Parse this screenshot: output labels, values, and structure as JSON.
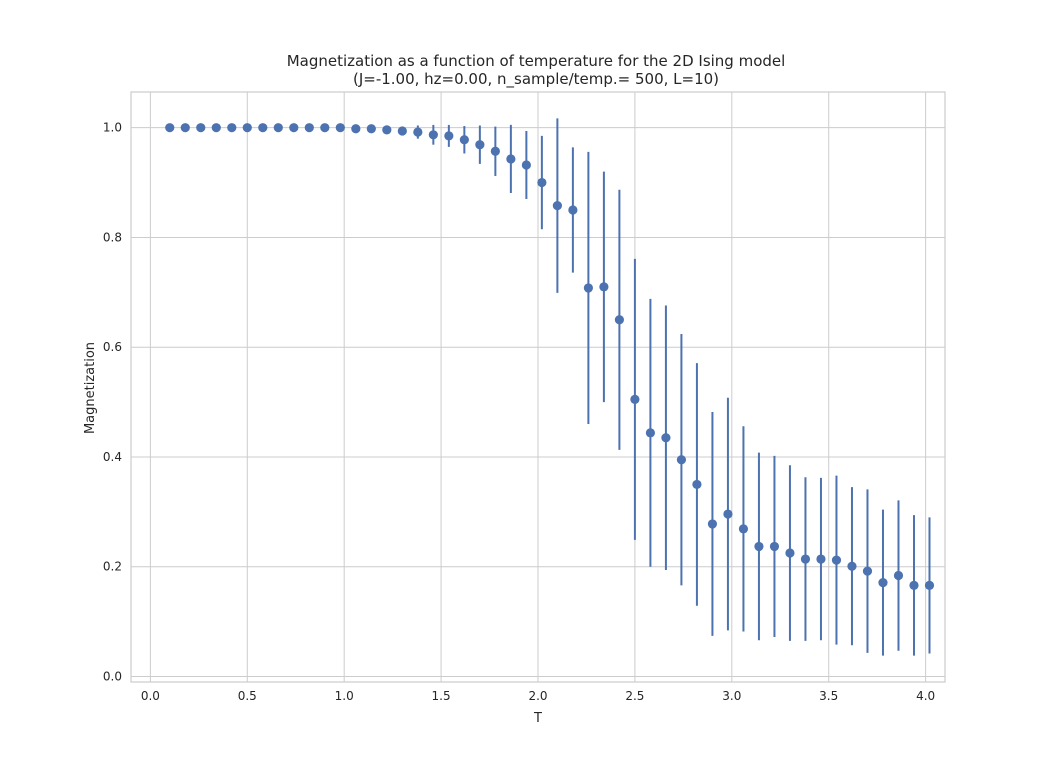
{
  "colors": {
    "series": "#4c72b0",
    "grid": "#cccccc",
    "text": "#262626"
  },
  "chart_data": {
    "type": "scatter",
    "title_line1": "Magnetization as a function of temperature for the 2D Ising model",
    "title_line2": "(J=-1.00, hz=0.00, n_sample/temp.= 500, L=10)",
    "xlabel": "T",
    "ylabel": "Magnetization",
    "xlim": [
      -0.1,
      4.1
    ],
    "ylim": [
      -0.01,
      1.065
    ],
    "x_ticks": [
      0.0,
      0.5,
      1.0,
      1.5,
      2.0,
      2.5,
      3.0,
      3.5,
      4.0
    ],
    "x_tick_labels": [
      "0.0",
      "0.5",
      "1.0",
      "1.5",
      "2.0",
      "2.5",
      "3.0",
      "3.5",
      "4.0"
    ],
    "y_ticks": [
      0.0,
      0.2,
      0.4,
      0.6,
      0.8,
      1.0
    ],
    "y_tick_labels": [
      "0.0",
      "0.2",
      "0.4",
      "0.6",
      "0.8",
      "1.0"
    ],
    "grid": true,
    "error_bars": true,
    "x": [
      0.1,
      0.18,
      0.26,
      0.34,
      0.42,
      0.5,
      0.58,
      0.66,
      0.74,
      0.82,
      0.9,
      0.98,
      1.06,
      1.14,
      1.22,
      1.3,
      1.38,
      1.46,
      1.54,
      1.62,
      1.7,
      1.78,
      1.86,
      1.94,
      2.02,
      2.1,
      2.18,
      2.26,
      2.34,
      2.42,
      2.5,
      2.58,
      2.66,
      2.74,
      2.82,
      2.9,
      2.98,
      3.06,
      3.14,
      3.22,
      3.3,
      3.38,
      3.46,
      3.54,
      3.62,
      3.7,
      3.78,
      3.86,
      3.94,
      4.02
    ],
    "y": [
      1.0,
      1.0,
      1.0,
      1.0,
      1.0,
      1.0,
      1.0,
      1.0,
      1.0,
      1.0,
      1.0,
      1.0,
      0.998,
      0.998,
      0.996,
      0.994,
      0.992,
      0.987,
      0.985,
      0.978,
      0.969,
      0.957,
      0.943,
      0.932,
      0.9,
      0.858,
      0.85,
      0.708,
      0.71,
      0.65,
      0.505,
      0.444,
      0.435,
      0.395,
      0.35,
      0.278,
      0.296,
      0.269,
      0.237,
      0.237,
      0.225,
      0.214,
      0.214,
      0.212,
      0.201,
      0.192,
      0.171,
      0.184,
      0.166,
      0.166
    ],
    "yerr": [
      0.0,
      0.0,
      0.0,
      0.0,
      0.0,
      0.0,
      0.0,
      0.0,
      0.0,
      0.0,
      0.0,
      0.0,
      0.002,
      0.002,
      0.005,
      0.008,
      0.012,
      0.018,
      0.02,
      0.025,
      0.035,
      0.045,
      0.062,
      0.062,
      0.085,
      0.159,
      0.114,
      0.248,
      0.21,
      0.237,
      0.256,
      0.244,
      0.241,
      0.229,
      0.221,
      0.204,
      0.212,
      0.187,
      0.171,
      0.165,
      0.16,
      0.149,
      0.148,
      0.154,
      0.144,
      0.149,
      0.133,
      0.137,
      0.128,
      0.124
    ]
  }
}
